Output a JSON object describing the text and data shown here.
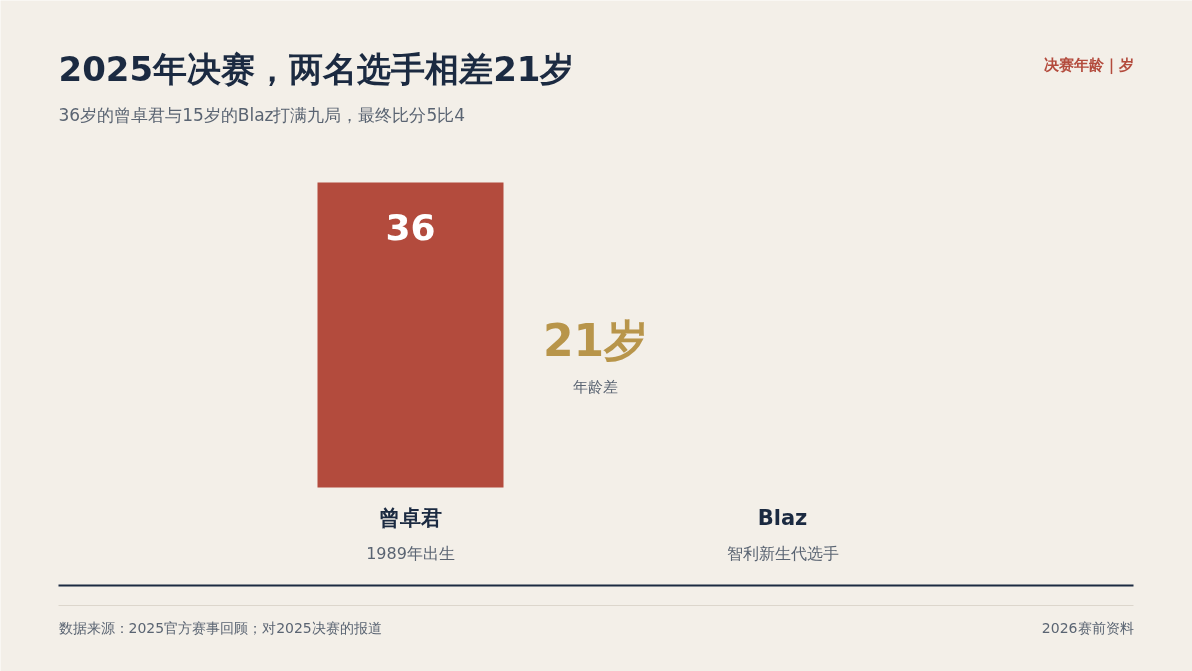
{
  "chart_data": {
    "type": "bar",
    "title": "2025年决赛，两名选手相差21岁",
    "subtitle": "36岁的曾卓君与15岁的Blaz打满九局，最终比分5比4",
    "categories": [
      "曾卓君",
      "Blaz"
    ],
    "series": [
      {
        "color": "#b34b3d",
        "values": [
          36,
          null
        ],
        "value_labels": [
          "36",
          null
        ]
      }
    ],
    "ylim": [
      0,
      36
    ],
    "annotations": [
      "决赛年龄｜岁",
      "21岁",
      "年龄差",
      "1989年出生",
      "智利新生代选手",
      "数据来源：2025官方赛事回顾；对2025决赛的报道",
      "2026赛前资料"
    ],
    "grid": false
  }
}
